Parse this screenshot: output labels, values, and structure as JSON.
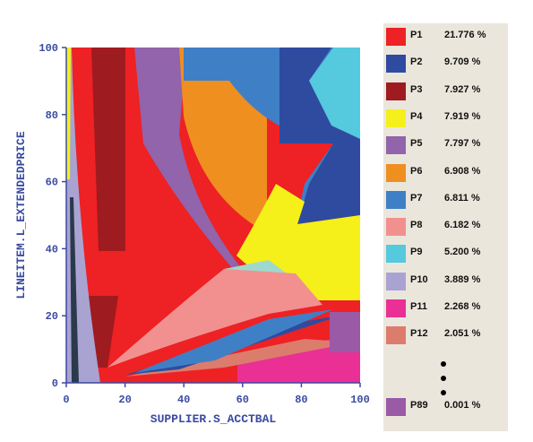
{
  "chart_data": {
    "type": "heatmap",
    "xlabel": "SUPPLIER.S_ACCTBAL",
    "ylabel": "LINEITEM.L_EXTENDEDPRICE",
    "xlim": [
      0,
      100
    ],
    "ylim": [
      0,
      100
    ],
    "x_ticks": [
      "0",
      "20",
      "40",
      "60",
      "80",
      "100"
    ],
    "y_ticks": [
      "0",
      "20",
      "40",
      "60",
      "80",
      "100"
    ],
    "grid": false,
    "legend_position": "right",
    "legend": [
      {
        "name": "P1",
        "value": "21.776 %",
        "color": "#ee2124"
      },
      {
        "name": "P2",
        "value": "9.709 %",
        "color": "#2e4ba0"
      },
      {
        "name": "P3",
        "value": "7.927 %",
        "color": "#9e1b1f"
      },
      {
        "name": "P4",
        "value": "7.919 %",
        "color": "#f5f01a"
      },
      {
        "name": "P5",
        "value": "7.797 %",
        "color": "#9164ab"
      },
      {
        "name": "P6",
        "value": "6.908 %",
        "color": "#ee8f1f"
      },
      {
        "name": "P7",
        "value": "6.811 %",
        "color": "#3f7fc6"
      },
      {
        "name": "P8",
        "value": "6.182 %",
        "color": "#f29090"
      },
      {
        "name": "P9",
        "value": "5.200 %",
        "color": "#55c9dd"
      },
      {
        "name": "P10",
        "value": "3.889 %",
        "color": "#a9a3d2"
      },
      {
        "name": "P11",
        "value": "2.268 %",
        "color": "#ea2f95"
      },
      {
        "name": "P12",
        "value": "2.051 %",
        "color": "#dc7c6c"
      },
      {
        "name": "P89",
        "value": "0.001 %",
        "color": "#9a5aa6"
      }
    ]
  }
}
